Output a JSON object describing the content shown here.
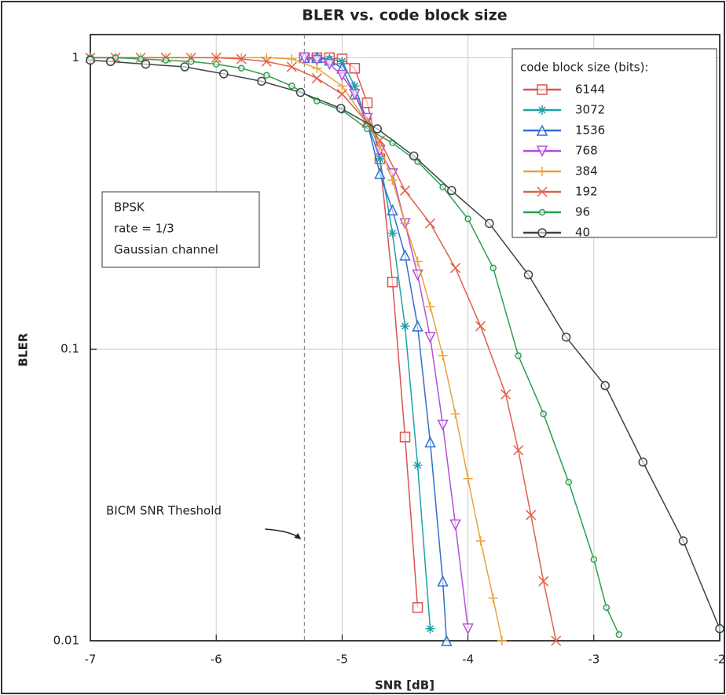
{
  "chart_data": {
    "type": "line",
    "title": "BLER vs. code block size",
    "x_label": "SNR [dB]",
    "y_label": "BLER",
    "xlim": [
      -7,
      -2
    ],
    "xticks": [
      -7,
      -6,
      -5,
      -4,
      -3,
      -2
    ],
    "ylim": [
      0.01,
      1.2
    ],
    "yticks": [
      1,
      0.1,
      0.01
    ],
    "log_y": true,
    "grid": true,
    "legend_title": "code block size (bits):",
    "legend_position": "upper right",
    "text_box": [
      "BPSK",
      "rate = 1/3",
      "Gaussian channel"
    ],
    "threshold_label": "BICM SNR Theshold",
    "threshold_x": -5.3,
    "series": [
      {
        "name": "6144",
        "color": "#d9534f",
        "marker": "square",
        "x": [
          -5.3,
          -5.2,
          -5.1,
          -5.0,
          -4.9,
          -4.8,
          -4.7,
          -4.6,
          -4.5,
          -4.4
        ],
        "values": [
          1,
          1,
          1,
          0.99,
          0.92,
          0.7,
          0.45,
          0.17,
          0.05,
          0.013
        ]
      },
      {
        "name": "3072",
        "color": "#1fa0a8",
        "marker": "star",
        "x": [
          -5.2,
          -5.1,
          -5.0,
          -4.9,
          -4.8,
          -4.7,
          -4.6,
          -4.5,
          -4.4,
          -4.3
        ],
        "values": [
          1,
          0.99,
          0.97,
          0.8,
          0.6,
          0.45,
          0.25,
          0.12,
          0.04,
          0.011
        ]
      },
      {
        "name": "1536",
        "color": "#2f6fd0",
        "marker": "triangle-up",
        "x": [
          -5.3,
          -5.2,
          -5.1,
          -5.0,
          -4.9,
          -4.8,
          -4.7,
          -4.6,
          -4.5,
          -4.4,
          -4.3,
          -4.2,
          -4.17
        ],
        "values": [
          1,
          1,
          0.98,
          0.92,
          0.75,
          0.6,
          0.4,
          0.3,
          0.21,
          0.12,
          0.048,
          0.016,
          0.01
        ]
      },
      {
        "name": "768",
        "color": "#b44fd6",
        "marker": "triangle-down",
        "x": [
          -5.3,
          -5.2,
          -5.1,
          -5.0,
          -4.9,
          -4.8,
          -4.7,
          -4.6,
          -4.5,
          -4.4,
          -4.3,
          -4.2,
          -4.1,
          -4.0
        ],
        "values": [
          1,
          0.98,
          0.95,
          0.87,
          0.75,
          0.62,
          0.48,
          0.4,
          0.27,
          0.18,
          0.11,
          0.055,
          0.025,
          0.011
        ]
      },
      {
        "name": "384",
        "color": "#e8a33a",
        "marker": "plus",
        "x": [
          -7,
          -6.8,
          -6.6,
          -6.4,
          -6.2,
          -6.0,
          -5.8,
          -5.6,
          -5.4,
          -5.2,
          -5.0,
          -4.8,
          -4.7,
          -4.6,
          -4.5,
          -4.4,
          -4.3,
          -4.2,
          -4.1,
          -4.0,
          -3.9,
          -3.8,
          -3.73
        ],
        "values": [
          1,
          1,
          1,
          1,
          1,
          1,
          1,
          1,
          0.99,
          0.92,
          0.8,
          0.6,
          0.5,
          0.38,
          0.27,
          0.2,
          0.14,
          0.095,
          0.06,
          0.036,
          0.022,
          0.014,
          0.01
        ]
      },
      {
        "name": "192",
        "color": "#e0604a",
        "marker": "cross",
        "x": [
          -7,
          -6.8,
          -6.6,
          -6.4,
          -6.2,
          -6.0,
          -5.8,
          -5.6,
          -5.4,
          -5.2,
          -5.0,
          -4.8,
          -4.7,
          -4.5,
          -4.3,
          -4.1,
          -3.9,
          -3.7,
          -3.6,
          -3.5,
          -3.4,
          -3.3
        ],
        "values": [
          1,
          1,
          1,
          1,
          1,
          1,
          0.99,
          0.97,
          0.93,
          0.85,
          0.75,
          0.6,
          0.52,
          0.35,
          0.27,
          0.19,
          0.12,
          0.07,
          0.045,
          0.027,
          0.016,
          0.01
        ]
      },
      {
        "name": "96",
        "color": "#2e9e4f",
        "marker": "small-circle",
        "x": [
          -7,
          -6.8,
          -6.6,
          -6.4,
          -6.2,
          -6.0,
          -5.8,
          -5.6,
          -5.4,
          -5.2,
          -5.0,
          -4.8,
          -4.6,
          -4.4,
          -4.2,
          -4.0,
          -3.8,
          -3.6,
          -3.4,
          -3.2,
          -3.0,
          -2.9,
          -2.8
        ],
        "values": [
          1,
          1,
          0.99,
          0.98,
          0.97,
          0.95,
          0.92,
          0.87,
          0.8,
          0.71,
          0.66,
          0.57,
          0.51,
          0.44,
          0.36,
          0.28,
          0.19,
          0.095,
          0.06,
          0.035,
          0.019,
          0.013,
          0.0105
        ]
      },
      {
        "name": "40",
        "color": "#3a4448",
        "marker": "circle",
        "x": [
          -7,
          -6.84,
          -6.56,
          -6.25,
          -5.94,
          -5.64,
          -5.33,
          -5.01,
          -4.72,
          -4.43,
          -4.13,
          -3.83,
          -3.52,
          -3.22,
          -2.91,
          -2.61,
          -2.29,
          -2.0
        ],
        "values": [
          0.98,
          0.97,
          0.95,
          0.93,
          0.88,
          0.83,
          0.76,
          0.67,
          0.57,
          0.46,
          0.35,
          0.27,
          0.18,
          0.11,
          0.075,
          0.041,
          0.022,
          0.011
        ]
      }
    ]
  }
}
